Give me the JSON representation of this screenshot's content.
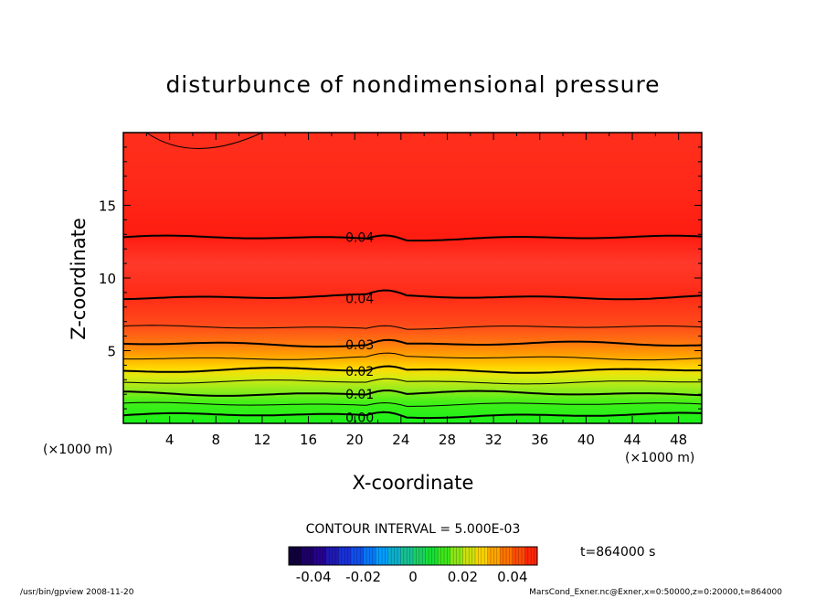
{
  "chart_data": {
    "type": "heatmap",
    "title": "disturbunce of nondimensional pressure",
    "xlabel": "X-coordinate",
    "ylabel": "Z-coordinate",
    "x_unit": "(×1000 m)",
    "y_unit": "(×1000 m)",
    "xlim": [
      0,
      50
    ],
    "ylim": [
      0,
      20
    ],
    "x_ticks": [
      4,
      8,
      12,
      16,
      20,
      24,
      28,
      32,
      36,
      40,
      44,
      48
    ],
    "y_ticks": [
      5,
      10,
      15
    ],
    "contour_interval_label": "CONTOUR INTERVAL = 5.000E-03",
    "colorbar_ticks": [
      "-0.04",
      "-0.02",
      "0",
      "0.02",
      "0.04"
    ],
    "colorbar_range": [
      -0.05,
      0.05
    ],
    "time_label": "t=864000 s",
    "contour_labels": [
      {
        "text": "0.04",
        "x": 19.2,
        "z": 12.8
      },
      {
        "text": "0.04",
        "x": 19.2,
        "z": 8.6
      },
      {
        "text": "0.03",
        "x": 19.2,
        "z": 5.4
      },
      {
        "text": "0.02",
        "x": 19.2,
        "z": 3.6
      },
      {
        "text": "0.01",
        "x": 19.2,
        "z": 2.0
      },
      {
        "text": "0.00",
        "x": 19.2,
        "z": 0.4
      }
    ],
    "major_contours": [
      {
        "value": 0.0,
        "z": 0.55
      },
      {
        "value": 0.01,
        "z": 2.05
      },
      {
        "value": 0.02,
        "z": 3.65
      },
      {
        "value": 0.03,
        "z": 5.45
      },
      {
        "value": 0.04,
        "z": 8.7
      },
      {
        "value": 0.04,
        "z": 12.75
      }
    ],
    "minor_contours": [
      {
        "value": 0.005,
        "z": 1.3
      },
      {
        "value": 0.015,
        "z": 2.85
      },
      {
        "value": 0.025,
        "z": 4.5
      },
      {
        "value": 0.035,
        "z": 6.6
      },
      {
        "value": 0.045,
        "z": 18.8
      }
    ],
    "colors": {
      "green": "#19f019",
      "yellow_green": "#a8ea1c",
      "yellow": "#ffde00",
      "orange": "#ff8a00",
      "red_orange": "#ff4a1a",
      "red": "#ff2a1a",
      "bright_red": "#ff1e10"
    }
  },
  "footer": {
    "left": "/usr/bin/gpview  2008-11-20",
    "right": "MarsCond_Exner.nc@Exner,x=0:50000,z=0:20000,t=864000"
  }
}
